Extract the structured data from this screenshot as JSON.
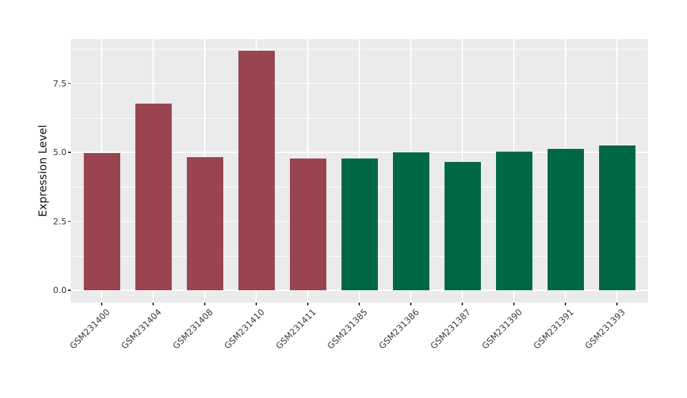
{
  "style": {
    "background": "#ffffff",
    "panel_background": "#ebebeb",
    "grid_color": "#ffffff",
    "tick_mark_color": "#333333",
    "axis_text_color": "#3a3a3a",
    "axis_title_color": "#0d0d0d",
    "bar_color_group1": "#9a4451",
    "bar_color_group2": "#006847"
  },
  "chart_data": {
    "type": "bar",
    "title": "",
    "xlabel": "",
    "ylabel": "Expression Level",
    "categories": [
      "GSM231400",
      "GSM231404",
      "GSM231408",
      "GSM231410",
      "GSM231411",
      "GSM231385",
      "GSM231386",
      "GSM231387",
      "GSM231390",
      "GSM231391",
      "GSM231393"
    ],
    "values": [
      4.97,
      6.77,
      4.83,
      8.69,
      4.77,
      4.79,
      5.01,
      4.66,
      5.03,
      5.12,
      5.26
    ],
    "bar_colors": [
      "#9a4451",
      "#9a4451",
      "#9a4451",
      "#9a4451",
      "#9a4451",
      "#006847",
      "#006847",
      "#006847",
      "#006847",
      "#006847",
      "#006847"
    ],
    "ytick_labels": [
      "0.0",
      "2.5",
      "5.0",
      "7.5"
    ],
    "ytick_values": [
      0,
      2.5,
      5.0,
      7.5
    ],
    "minor_ytick_values": [
      1.25,
      3.75,
      6.25,
      8.75
    ],
    "ylim": [
      -0.45,
      9.11
    ],
    "grid": true,
    "legend_position": "none",
    "x_tick_label_angle": 45
  }
}
